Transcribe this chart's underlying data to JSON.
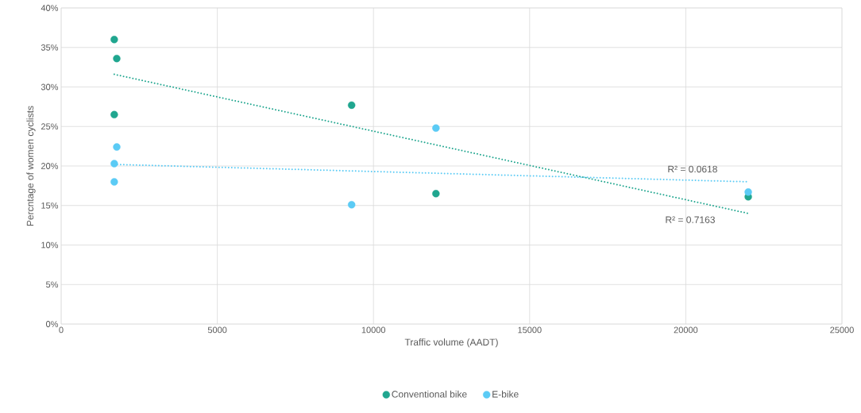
{
  "chart_data": {
    "type": "scatter",
    "xlabel": "Traffic volume (AADT)",
    "ylabel": "Percntage of women cyclists",
    "xlim": [
      0,
      25000
    ],
    "xticks": [
      0,
      5000,
      10000,
      15000,
      20000,
      25000
    ],
    "ylim": [
      0,
      40
    ],
    "yticks": [
      {
        "value": 0,
        "label": "0%"
      },
      {
        "value": 5,
        "label": "5%"
      },
      {
        "value": 10,
        "label": "10%"
      },
      {
        "value": 15,
        "label": "15%"
      },
      {
        "value": 20,
        "label": "20%"
      },
      {
        "value": 25,
        "label": "25%"
      },
      {
        "value": 30,
        "label": "30%"
      },
      {
        "value": 35,
        "label": "35%"
      },
      {
        "value": 40,
        "label": "40%"
      }
    ],
    "grid": true,
    "legend": "bottom",
    "marker": "circle",
    "series": [
      {
        "name": "Conventional bike",
        "color": "#20a68f",
        "x": [
          1700,
          1780,
          1700,
          9300,
          12000,
          22000
        ],
        "values": [
          36.0,
          33.6,
          26.5,
          27.7,
          16.5,
          16.1
        ]
      },
      {
        "name": "E-bike",
        "color": "#5bcbf5",
        "x": [
          1780,
          1700,
          1700,
          9300,
          12000,
          22000
        ],
        "values": [
          22.4,
          20.3,
          18.0,
          15.1,
          24.8,
          16.7
        ]
      },
      {
        "type": "line",
        "color": "#20a68f",
        "marker": "none",
        "line_style": "dotted",
        "x": [
          1700,
          22000
        ],
        "values": [
          31.6,
          14.0
        ]
      },
      {
        "type": "line",
        "color": "#5bcbf5",
        "marker": "none",
        "line_style": "dotted",
        "x": [
          1700,
          22000
        ],
        "values": [
          20.2,
          18.0
        ]
      }
    ],
    "annotations": [
      "R² = 0.0618",
      "R² = 0.7163"
    ]
  }
}
